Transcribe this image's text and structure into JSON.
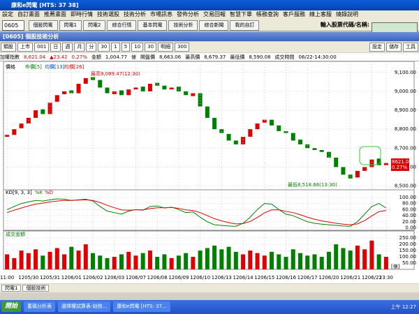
{
  "window": {
    "title": "康和e閃電 [HTS: 37 38]",
    "panel_title": "[0605] 個股技術分析"
  },
  "menu": [
    "設定",
    "自訂畫面",
    "推薦畫面",
    "即時行情",
    "技術選股",
    "技術分析",
    "市場訊息",
    "發佈分析",
    "交易回報",
    "智慧下單",
    "帳務查詢",
    "客戶服務",
    "線上客服",
    "燒錄說明"
  ],
  "toolbar": {
    "code": "0605",
    "buttons": [
      "個股閃電",
      "閃電1",
      "閃電2",
      "綜合行情",
      "基本閃電",
      "技術分析",
      "綜合新聞",
      "我的自訂"
    ],
    "search_label": "輸入股票代碼/名稱:"
  },
  "controls": {
    "left": [
      "類股",
      "上市",
      "001",
      "日",
      "週",
      "月",
      "分",
      "30",
      "1",
      "5",
      "10",
      "30",
      "明細",
      "300"
    ],
    "right": [
      "設定",
      "儲存",
      "工具"
    ]
  },
  "info": [
    "加權指數",
    "8,621.04",
    "▲23.42",
    "0.27%",
    "金額",
    "1,004.77",
    "億",
    "開盤價",
    "8,663.06",
    "最高價",
    "8,679.37",
    "最低價",
    "8,590.08",
    "成交時間",
    "06/22-14:30:00"
  ],
  "chart_data": [
    {
      "type": "candlestick",
      "legend": [
        "價格",
        "布價[5]",
        "均價[13]",
        "均價[26]"
      ],
      "annotations": [
        "最高9,089.47(12:30)",
        "最低8,518.66(13:30)"
      ],
      "last_label": "8621.04",
      "last_change": "0.27%",
      "up_color": "#e00000",
      "down_color": "#008000",
      "categories": [
        "11:00",
        null,
        null,
        "1205/30",
        null,
        null,
        "1205/31",
        null,
        null,
        "1206/01",
        null,
        null,
        "1206/02",
        null,
        null,
        "1206/03",
        null,
        null,
        "1206/07",
        null,
        null,
        "1206/08",
        null,
        null,
        "1206/09",
        null,
        null,
        "1206/10",
        null,
        null,
        "1206/13",
        null,
        null,
        "1206/14",
        null,
        null,
        "1206/15",
        null,
        null,
        "1206/16",
        null,
        null,
        "1206/17",
        null,
        null,
        "1206/20",
        null,
        null,
        "1206/21",
        null,
        null,
        "1206/22",
        null,
        "13:30"
      ],
      "open": [
        8760,
        8770,
        8805,
        8830,
        8860,
        8905,
        8880,
        8945,
        8985,
        9005,
        8990,
        9040,
        9075,
        9060,
        9020,
        8985,
        9005,
        8980,
        9010,
        9025,
        9000,
        9045,
        9030,
        9010,
        9025,
        9000,
        8975,
        8990,
        8920,
        8860,
        8800,
        8775,
        8740,
        8720,
        8760,
        8800,
        8835,
        8850,
        8820,
        8790,
        8780,
        8745,
        8720,
        8700,
        8690,
        8680,
        8650,
        8600,
        8560,
        8545,
        8580,
        8600,
        8645,
        8610
      ],
      "close": [
        8770,
        8800,
        8830,
        8860,
        8900,
        8880,
        8940,
        8980,
        9000,
        8990,
        9040,
        9070,
        9060,
        9020,
        8990,
        9000,
        8980,
        9010,
        9020,
        9000,
        9040,
        9030,
        9010,
        9020,
        9000,
        8980,
        8990,
        8920,
        8860,
        8800,
        8780,
        8740,
        8720,
        8760,
        8800,
        8830,
        8850,
        8820,
        8790,
        8780,
        8740,
        8720,
        8700,
        8690,
        8680,
        8650,
        8600,
        8560,
        8540,
        8580,
        8600,
        8640,
        8610,
        8621.04
      ],
      "ylim": [
        8480,
        9125
      ],
      "yticks": [
        {
          "value": 9100,
          "label": "9,100.00"
        },
        {
          "value": 9000,
          "label": "9,000.00"
        },
        {
          "value": 8900,
          "label": "8,900.00"
        },
        {
          "value": 8800,
          "label": "8,800.00"
        },
        {
          "value": 8700,
          "label": "8,700.00"
        },
        {
          "value": 8600,
          "label": "8,600.00"
        },
        {
          "value": 8500,
          "label": "8,500.00"
        }
      ]
    },
    {
      "type": "line",
      "title": "KD[9, 3, 3]",
      "series": [
        {
          "name": "%K",
          "color": "#008000",
          "values": [
            60,
            70,
            80,
            85,
            90,
            88,
            92,
            95,
            94,
            90,
            92,
            94,
            88,
            70,
            55,
            50,
            45,
            55,
            60,
            58,
            70,
            72,
            65,
            68,
            60,
            50,
            52,
            35,
            20,
            10,
            8,
            6,
            5,
            15,
            35,
            60,
            80,
            78,
            60,
            45,
            40,
            30,
            20,
            15,
            12,
            10,
            8,
            6,
            5,
            20,
            45,
            70,
            80,
            65
          ]
        },
        {
          "name": "%D",
          "color": "#e00000",
          "values": [
            50,
            58,
            65,
            72,
            78,
            81,
            85,
            88,
            90,
            90,
            91,
            92,
            90,
            83,
            74,
            66,
            59,
            58,
            59,
            59,
            63,
            66,
            66,
            67,
            64,
            59,
            57,
            50,
            40,
            30,
            23,
            17,
            13,
            14,
            21,
            34,
            49,
            59,
            59,
            54,
            50,
            43,
            35,
            28,
            23,
            19,
            15,
            12,
            10,
            13,
            24,
            39,
            53,
            57
          ]
        }
      ],
      "ylim": [
        -8,
        118
      ],
      "yticks": [
        {
          "value": 100,
          "label": "100.00"
        },
        {
          "value": 80,
          "label": "80.00"
        },
        {
          "value": 60,
          "label": "60.00"
        },
        {
          "value": 40,
          "label": "40.00"
        },
        {
          "value": 20,
          "label": "20.00"
        },
        {
          "value": 0,
          "label": "0.00"
        }
      ]
    },
    {
      "type": "bar",
      "title": "成交金額",
      "unit": "[億]",
      "values": [
        120,
        90,
        150,
        130,
        160,
        110,
        140,
        170,
        120,
        180,
        150,
        200,
        130,
        110,
        90,
        100,
        120,
        140,
        110,
        130,
        150,
        100,
        120,
        90,
        110,
        130,
        100,
        150,
        170,
        190,
        160,
        180,
        140,
        120,
        150,
        130,
        110,
        140,
        120,
        100,
        160,
        130,
        110,
        120,
        100,
        140,
        200,
        170,
        150,
        190,
        160,
        230,
        120,
        100
      ],
      "ylim": [
        0,
        290
      ],
      "yticks": [
        {
          "value": 250,
          "label": "250.00"
        },
        {
          "value": 200,
          "label": "200.00"
        },
        {
          "value": 150,
          "label": "150.00"
        },
        {
          "value": 100,
          "label": "100.00"
        },
        {
          "value": 50,
          "label": "50.00"
        }
      ]
    }
  ],
  "tabs": [
    "閃電1",
    "個股技術"
  ],
  "taskbar": {
    "start": "開始",
    "items": [
      "蓄碼分析表",
      "選擇權試算表-劫掠...",
      "康和e閃電 [HTS: 37..."
    ],
    "clock": "上午 12:27"
  }
}
